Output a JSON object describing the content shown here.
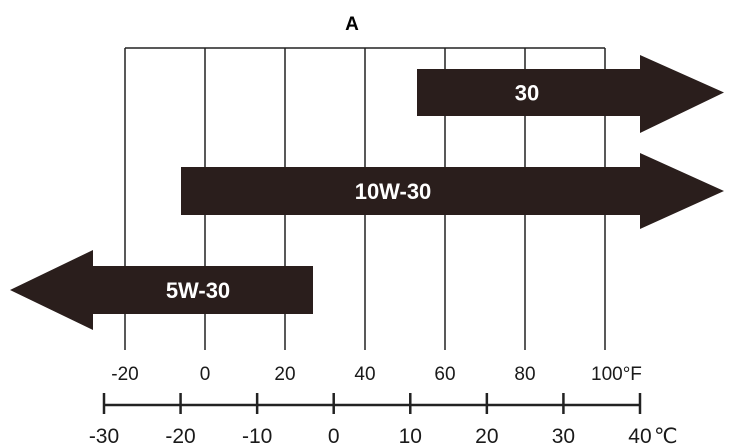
{
  "title": "A",
  "colors": {
    "arrow_fill": "#2a1e1c",
    "line": "#222222",
    "label": "#ffffff"
  },
  "chart_data": {
    "type": "range-arrows",
    "axis_f": {
      "unit_label": "°F",
      "ticks": [
        -20,
        0,
        20,
        40,
        60,
        80,
        100
      ],
      "tick_labels": [
        "-20",
        "0",
        "20",
        "40",
        "60",
        "80",
        "100°F"
      ],
      "range": [
        -20,
        100
      ]
    },
    "axis_c": {
      "unit_label": "℃",
      "ticks": [
        -30,
        -20,
        -10,
        0,
        10,
        20,
        30,
        40
      ],
      "tick_labels": [
        "-30",
        "-20",
        "-10",
        "0",
        "10",
        "20",
        "30",
        "40"
      ],
      "range": [
        -30,
        40
      ]
    },
    "grid": true,
    "series": [
      {
        "label": "30",
        "from_f": 53,
        "to_f": null,
        "open_end": "right"
      },
      {
        "label": "10W-30",
        "from_f": -6,
        "to_f": null,
        "open_end": "right"
      },
      {
        "label": "5W-30",
        "from_f": null,
        "to_f": 27,
        "open_end": "left"
      }
    ]
  }
}
